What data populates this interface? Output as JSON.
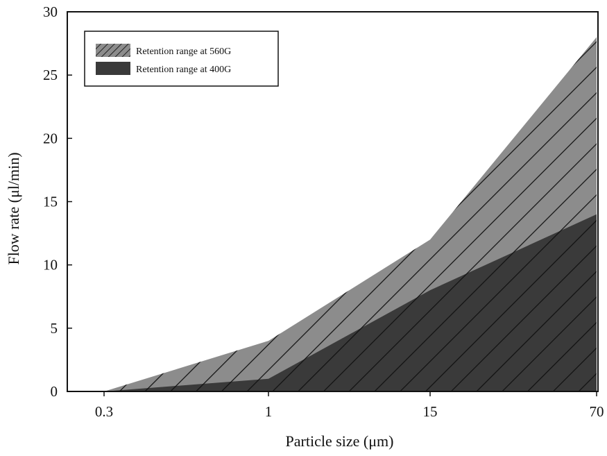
{
  "chart_data": {
    "type": "area",
    "title": "",
    "xlabel": "Particle size (μm)",
    "ylabel": "Flow rate (μl/min)",
    "x_categories": [
      "0.3",
      "1",
      "15",
      "70"
    ],
    "ylim": [
      0,
      30
    ],
    "y_ticks": [
      "0",
      "5",
      "10",
      "15",
      "20",
      "25",
      "30"
    ],
    "grid": false,
    "legend_position": "top-left",
    "series": [
      {
        "name": "Retention range at 560G",
        "pattern": "diagonal-hatch",
        "color": "#8c8c8c",
        "values": [
          0,
          4,
          12,
          28
        ]
      },
      {
        "name": "Retention range at 400G",
        "pattern": "solid",
        "color": "#3a3a3a",
        "values": [
          0,
          1,
          8,
          14
        ]
      }
    ]
  }
}
